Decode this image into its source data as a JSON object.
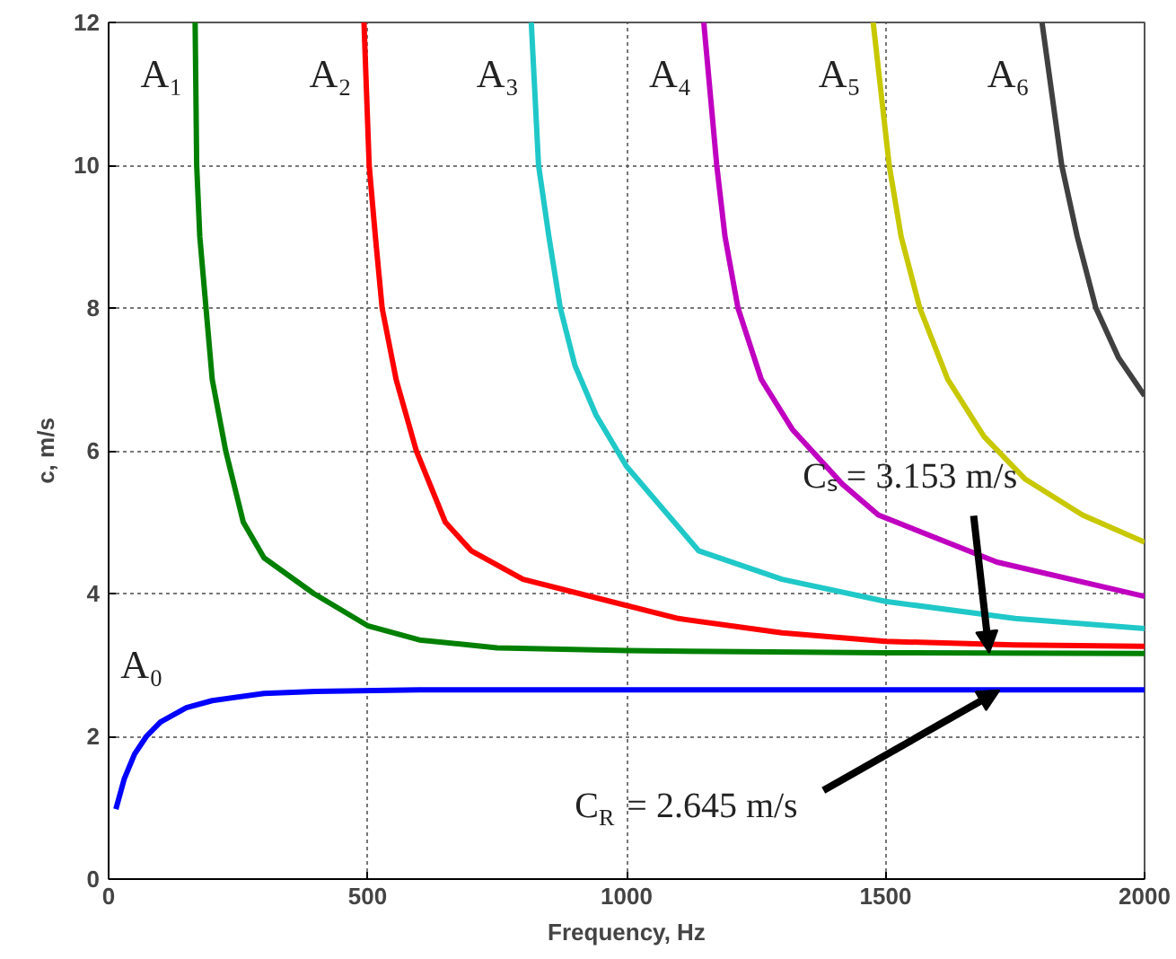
{
  "chart_data": {
    "type": "line",
    "xlabel": "Frequency, Hz",
    "ylabel": "c, m/s",
    "xlim": [
      0,
      2000
    ],
    "ylim": [
      0,
      12
    ],
    "xticks": [
      0,
      500,
      1000,
      1500,
      2000
    ],
    "yticks": [
      0,
      2,
      4,
      6,
      8,
      10,
      12
    ],
    "grid": true,
    "legend": false,
    "marker": "none",
    "line_style": "solid",
    "series": [
      {
        "name": "A₀",
        "color": "#0000ff",
        "x": [
          14,
          30,
          50,
          73,
          100,
          150,
          200,
          300,
          400,
          600,
          1000,
          1500,
          2000
        ],
        "values": [
          0.98,
          1.4,
          1.75,
          2.0,
          2.2,
          2.4,
          2.5,
          2.6,
          2.63,
          2.65,
          2.65,
          2.65,
          2.65
        ]
      },
      {
        "name": "A₁",
        "color": "#008000",
        "x": [
          167,
          170,
          176,
          188,
          200,
          226,
          260,
          300,
          396,
          500,
          600,
          750,
          1000,
          1500,
          2000
        ],
        "values": [
          12,
          10,
          9,
          8,
          7,
          6,
          5,
          4.5,
          4,
          3.55,
          3.35,
          3.24,
          3.2,
          3.17,
          3.16
        ]
      },
      {
        "name": "A₂",
        "color": "#ff0000",
        "x": [
          493,
          503,
          515,
          528,
          555,
          594,
          650,
          700,
          800,
          941,
          1100,
          1300,
          1500,
          1750,
          2000
        ],
        "values": [
          12,
          10,
          9,
          8,
          7,
          6,
          5,
          4.6,
          4.2,
          3.94,
          3.65,
          3.45,
          3.33,
          3.28,
          3.26
        ]
      },
      {
        "name": "A₃",
        "color": "#20c8c8",
        "x": [
          816,
          830,
          850,
          872,
          900,
          941,
          1000,
          1139,
          1300,
          1500,
          1750,
          2000
        ],
        "values": [
          12,
          10,
          9,
          8,
          7.2,
          6.5,
          5.78,
          4.6,
          4.2,
          3.89,
          3.65,
          3.51
        ]
      },
      {
        "name": "A₄",
        "color": "#c000c0",
        "x": [
          1149,
          1174,
          1190,
          1215,
          1260,
          1320,
          1417,
          1486,
          1715,
          2000
        ],
        "values": [
          12,
          10,
          9,
          8,
          7,
          6.3,
          5.53,
          5.1,
          4.44,
          3.96
        ]
      },
      {
        "name": "A₅",
        "color": "#c8c800",
        "x": [
          1476,
          1507,
          1530,
          1566,
          1620,
          1690,
          1770,
          1880,
          2000
        ],
        "values": [
          12,
          10,
          9,
          8,
          7,
          6.2,
          5.6,
          5.1,
          4.72
        ]
      },
      {
        "name": "A₆",
        "color": "#404040",
        "x": [
          1802,
          1840,
          1870,
          1906,
          1950,
          2000
        ],
        "values": [
          12,
          10,
          9,
          8,
          7.3,
          6.77
        ]
      }
    ],
    "annotations": [
      {
        "text": "Cₛ = 3.153 m/s",
        "x": 1700,
        "y": 3.17
      },
      {
        "text": "C$_{R}$ = 2.645 m/s",
        "x": 1720,
        "y": 2.645
      }
    ]
  }
}
